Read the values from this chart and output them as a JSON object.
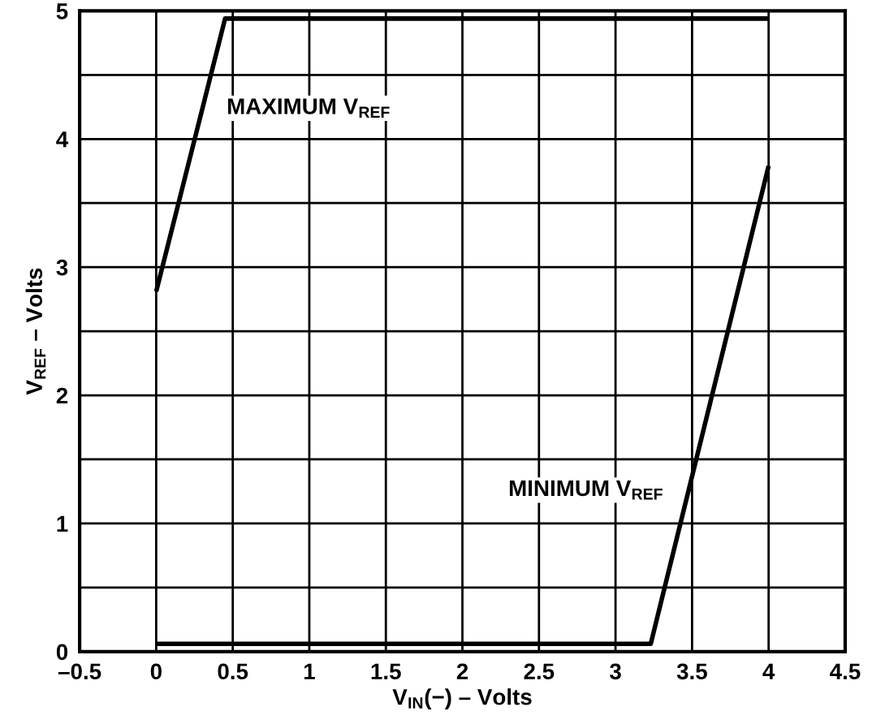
{
  "chart_data": {
    "type": "line",
    "xlabel": "V$_{IN}$(−) – Volts",
    "ylabel": "V$_{REF}$ – Volts",
    "series": [
      {
        "name": "MAXIMUM V$_{REF}$",
        "color": "#000000",
        "x": [
          0,
          0.45,
          4
        ],
        "values": [
          2.81,
          4.94,
          4.94
        ]
      },
      {
        "name": "MINIMUM V$_{REF}$",
        "color": "#000000",
        "x": [
          0,
          3.23,
          4
        ],
        "values": [
          0.06,
          0.06,
          3.79
        ]
      }
    ],
    "xlim": [
      -0.5,
      4.5
    ],
    "ylim": [
      0,
      5
    ],
    "xticks": [
      {
        "value": -0.5,
        "label": "–0.5"
      },
      0,
      0.5,
      1,
      1.5,
      2,
      2.5,
      3,
      3.5,
      4,
      4.5
    ],
    "yticks": [
      0,
      {
        "value": 0.5,
        "label": null
      },
      1,
      {
        "value": 1.5,
        "label": null
      },
      2,
      {
        "value": 2.5,
        "label": null
      },
      3,
      {
        "value": 3.5,
        "label": null
      },
      4,
      {
        "value": 4.5,
        "label": null
      },
      5
    ],
    "grid": true,
    "line_style": "solid",
    "marker": "none"
  }
}
